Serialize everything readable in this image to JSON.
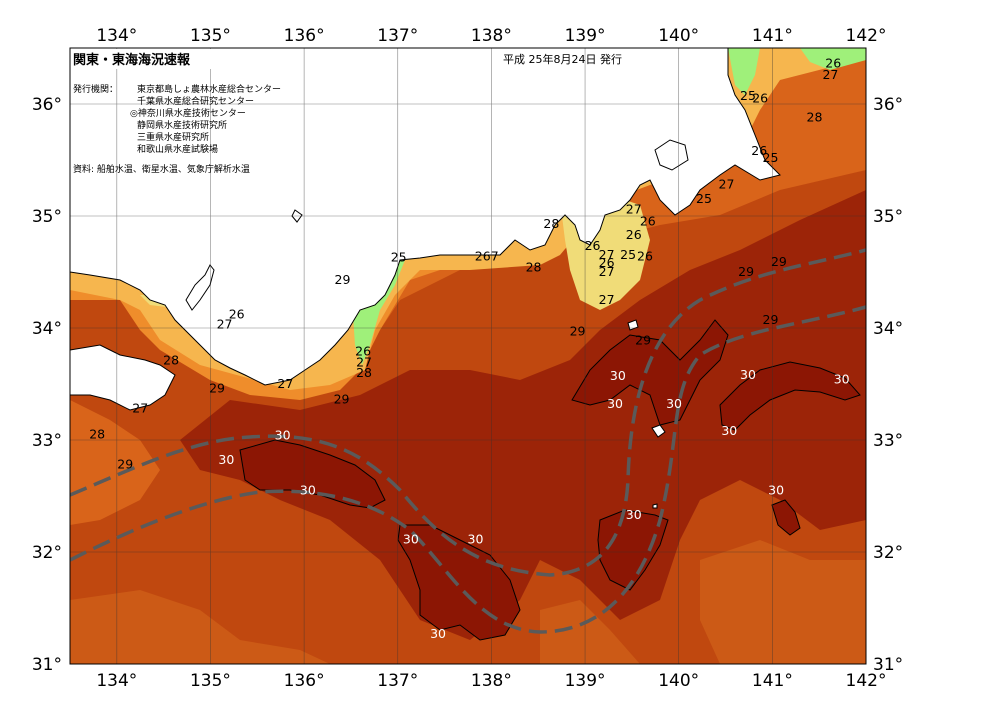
{
  "title": "関東・東海海況速報",
  "issue_date": "平成 25年8月24日 発行",
  "issuers_label": "発行機関：",
  "issuers": [
    "東京都島しょ農林水産総合センター",
    "千葉県水産総合研究センター",
    "◎神奈川県水産技術センター",
    "静岡県水産技術研究所",
    "三重県水産研究所",
    "和歌山県水産試験場"
  ],
  "sources": "資料: 船舶水温、衛星水温、気象庁解析水温",
  "axes": {
    "lon_ticks": [
      "134°",
      "135°",
      "136°",
      "137°",
      "138°",
      "139°",
      "140°",
      "141°",
      "142°"
    ],
    "lat_ticks": [
      "36°",
      "35°",
      "34°",
      "33°",
      "32°",
      "31°"
    ],
    "lon_range": [
      133.5,
      142
    ],
    "lat_range": [
      31,
      36.5
    ]
  },
  "colors": {
    "t25_below": "#9ff07a",
    "t25": "#f0dc78",
    "t26": "#f6b64e",
    "t27": "#ef8d2b",
    "t28": "#d9641a",
    "t29": "#b8400f",
    "t30": "#8c1604",
    "kuroshio_axis": "#5a5a5a"
  },
  "isotherm_labels": [
    {
      "text": "26",
      "lon": 141.65,
      "lat": 36.36
    },
    {
      "text": "27",
      "lon": 141.62,
      "lat": 36.26
    },
    {
      "text": "25",
      "lon": 140.74,
      "lat": 36.07
    },
    {
      "text": "26",
      "lon": 140.87,
      "lat": 36.05
    },
    {
      "text": "28",
      "lon": 141.45,
      "lat": 35.88
    },
    {
      "text": "26",
      "lon": 140.86,
      "lat": 35.58
    },
    {
      "text": "25",
      "lon": 140.98,
      "lat": 35.52
    },
    {
      "text": "27",
      "lon": 140.51,
      "lat": 35.28
    },
    {
      "text": "25",
      "lon": 140.27,
      "lat": 35.15
    },
    {
      "text": "27",
      "lon": 139.52,
      "lat": 35.06
    },
    {
      "text": "26",
      "lon": 139.67,
      "lat": 34.95
    },
    {
      "text": "28",
      "lon": 138.64,
      "lat": 34.93
    },
    {
      "text": "26",
      "lon": 139.52,
      "lat": 34.83
    },
    {
      "text": "26",
      "lon": 139.08,
      "lat": 34.73
    },
    {
      "text": "25",
      "lon": 137.01,
      "lat": 34.63
    },
    {
      "text": "267",
      "lon": 137.95,
      "lat": 34.64
    },
    {
      "text": "27",
      "lon": 139.23,
      "lat": 34.65
    },
    {
      "text": "25",
      "lon": 139.46,
      "lat": 34.65
    },
    {
      "text": "26",
      "lon": 139.64,
      "lat": 34.64
    },
    {
      "text": "26",
      "lon": 139.23,
      "lat": 34.58
    },
    {
      "text": "28",
      "lon": 138.45,
      "lat": 34.54
    },
    {
      "text": "27",
      "lon": 139.23,
      "lat": 34.5
    },
    {
      "text": "29",
      "lon": 136.41,
      "lat": 34.43
    },
    {
      "text": "29",
      "lon": 141.07,
      "lat": 34.59
    },
    {
      "text": "29",
      "lon": 140.72,
      "lat": 34.5
    },
    {
      "text": "27",
      "lon": 139.23,
      "lat": 34.25
    },
    {
      "text": "26",
      "lon": 135.28,
      "lat": 34.12
    },
    {
      "text": "27",
      "lon": 135.15,
      "lat": 34.03
    },
    {
      "text": "29",
      "lon": 140.98,
      "lat": 34.07
    },
    {
      "text": "29",
      "lon": 138.92,
      "lat": 33.97
    },
    {
      "text": "29",
      "lon": 139.62,
      "lat": 33.89
    },
    {
      "text": "26",
      "lon": 136.63,
      "lat": 33.79
    },
    {
      "text": "27",
      "lon": 136.64,
      "lat": 33.69
    },
    {
      "text": "28",
      "lon": 134.58,
      "lat": 33.71
    },
    {
      "text": "28",
      "lon": 136.64,
      "lat": 33.6
    },
    {
      "text": "30",
      "lon": 139.35,
      "lat": 33.57
    },
    {
      "text": "30",
      "lon": 140.74,
      "lat": 33.58
    },
    {
      "text": "30",
      "lon": 141.74,
      "lat": 33.54
    },
    {
      "text": "27",
      "lon": 135.8,
      "lat": 33.5
    },
    {
      "text": "29",
      "lon": 135.07,
      "lat": 33.46
    },
    {
      "text": "29",
      "lon": 136.4,
      "lat": 33.36
    },
    {
      "text": "30",
      "lon": 139.32,
      "lat": 33.32
    },
    {
      "text": "30",
      "lon": 139.95,
      "lat": 33.32
    },
    {
      "text": "27",
      "lon": 134.25,
      "lat": 33.28
    },
    {
      "text": "28",
      "lon": 133.79,
      "lat": 33.05
    },
    {
      "text": "30",
      "lon": 140.54,
      "lat": 33.08
    },
    {
      "text": "30",
      "lon": 135.77,
      "lat": 33.04
    },
    {
      "text": "30",
      "lon": 135.17,
      "lat": 32.82
    },
    {
      "text": "29",
      "lon": 134.09,
      "lat": 32.78
    },
    {
      "text": "30",
      "lon": 141.04,
      "lat": 32.55
    },
    {
      "text": "30",
      "lon": 136.04,
      "lat": 32.55
    },
    {
      "text": "30",
      "lon": 139.52,
      "lat": 32.33
    },
    {
      "text": "30",
      "lon": 137.14,
      "lat": 32.11
    },
    {
      "text": "30",
      "lon": 137.83,
      "lat": 32.11
    },
    {
      "text": "30",
      "lon": 137.43,
      "lat": 31.27
    }
  ]
}
